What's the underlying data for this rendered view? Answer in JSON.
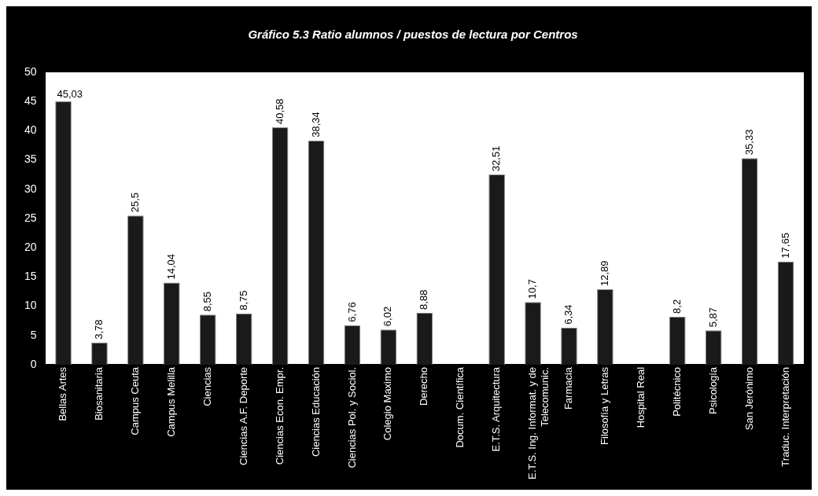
{
  "chart_data": {
    "type": "bar",
    "title": "Gráfico 5.3 Ratio alumnos / puestos de lectura por Centros",
    "categories": [
      "Bellas Artes",
      "Biosanitaria",
      "Campus Ceuta",
      "Campus Melilla",
      "Ciencias",
      "Ciencias A.F. Deporte",
      "Ciencias Econ. Empr.",
      "Ciencias Educación",
      "Ciencias Pol. y Sociol.",
      "Colegio Maximo",
      "Derecho",
      "Docum. Científica",
      "E.T.S. Arquitectura",
      "E.T.S. Ing. Informat. y de Telecomunic.",
      "Farmacia",
      "Filosofía y Letras",
      "Hospital Real",
      "Politécnico",
      "Psicología",
      "San Jerónimo",
      "Traduc. Interpretación"
    ],
    "values": [
      45.03,
      3.78,
      25.5,
      14.04,
      8.55,
      8.75,
      40.58,
      38.34,
      6.76,
      6.02,
      8.88,
      null,
      32.51,
      10.7,
      6.34,
      12.89,
      null,
      8.2,
      5.87,
      35.33,
      17.65
    ],
    "value_labels": [
      "45,03",
      "3,78",
      "25,5",
      "14,04",
      "8,55",
      "8,75",
      "40,58",
      "38,34",
      "6,76",
      "6,02",
      "8,88",
      null,
      "32,51",
      "10,7",
      "6,34",
      "12,89",
      null,
      "8,2",
      "5,87",
      "35,33",
      "17,65"
    ],
    "color": "#1a1a1a",
    "ylim": [
      0,
      50
    ],
    "yticks": [
      0,
      5,
      10,
      15,
      20,
      25,
      30,
      35,
      40,
      45,
      50
    ],
    "grid": false
  }
}
